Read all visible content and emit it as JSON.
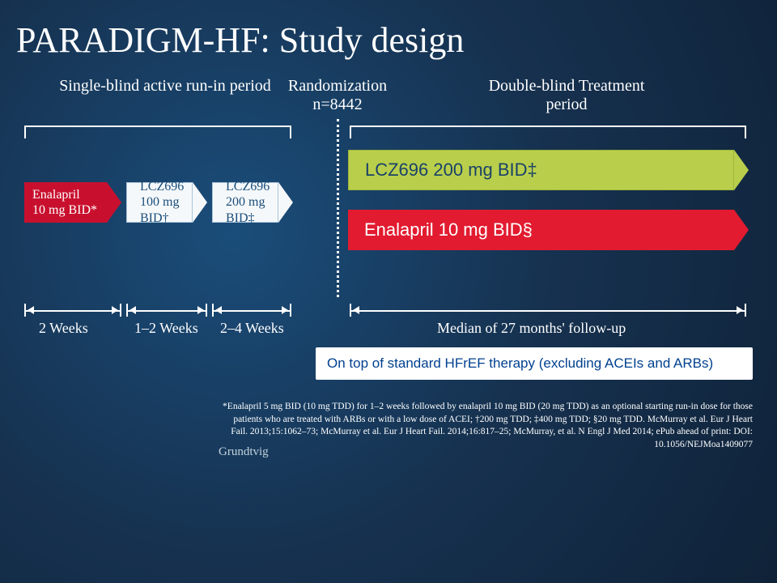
{
  "title": "PARADIGM-HF: Study design",
  "labels": {
    "runin": "Single-blind active run-in period",
    "rand_top": "Randomization",
    "rand_n": "n=8442",
    "db": "Double-blind Treatment period"
  },
  "runin_arrows": {
    "enalapril": {
      "line1": "Enalapril",
      "line2": "10 mg BID*"
    },
    "lcz100": {
      "line1": "LCZ696",
      "line2": "100 mg BID†"
    },
    "lcz200": {
      "line1": "LCZ696",
      "line2": "200 mg BID‡"
    }
  },
  "treatment_arms": {
    "lcz": "LCZ696 200 mg BID‡",
    "enalapril": "Enalapril 10 mg BID§"
  },
  "weeks": {
    "w1": "2 Weeks",
    "w2": "1–2 Weeks",
    "w3": "2–4 Weeks",
    "median": "Median of 27 months' follow-up"
  },
  "therapy_note": "On top of standard HFrEF therapy (excluding ACEIs and ARBs)",
  "footnote": "*Enalapril 5 mg BID (10 mg TDD) for 1–2 weeks followed by enalapril 10 mg BID (20 mg TDD) as an optional starting run-in dose for those patients who are treated with ARBs or with a low dose of ACEI; †200 mg TDD; ‡400 mg TDD; §20 mg TDD. McMurray et al. Eur J Heart Fail. 2013;15:1062–73; McMurray et al. Eur J Heart Fail. 2014;16:817–25; McMurray, et al. N Engl J Med 2014; ePub ahead of print: DOI: 10.1056/NEJMoa1409077",
  "grundtvig": "Grundtvig",
  "colors": {
    "bg_inner": "#1a4d7a",
    "bg_outer": "#0f2238",
    "green": "#b9cf4b",
    "red_small": "#c8102e",
    "red_big": "#e21b30",
    "blue_box": "#f5f8fa",
    "blue_text": "#1a4d7a",
    "white_box_text": "#00408f"
  }
}
